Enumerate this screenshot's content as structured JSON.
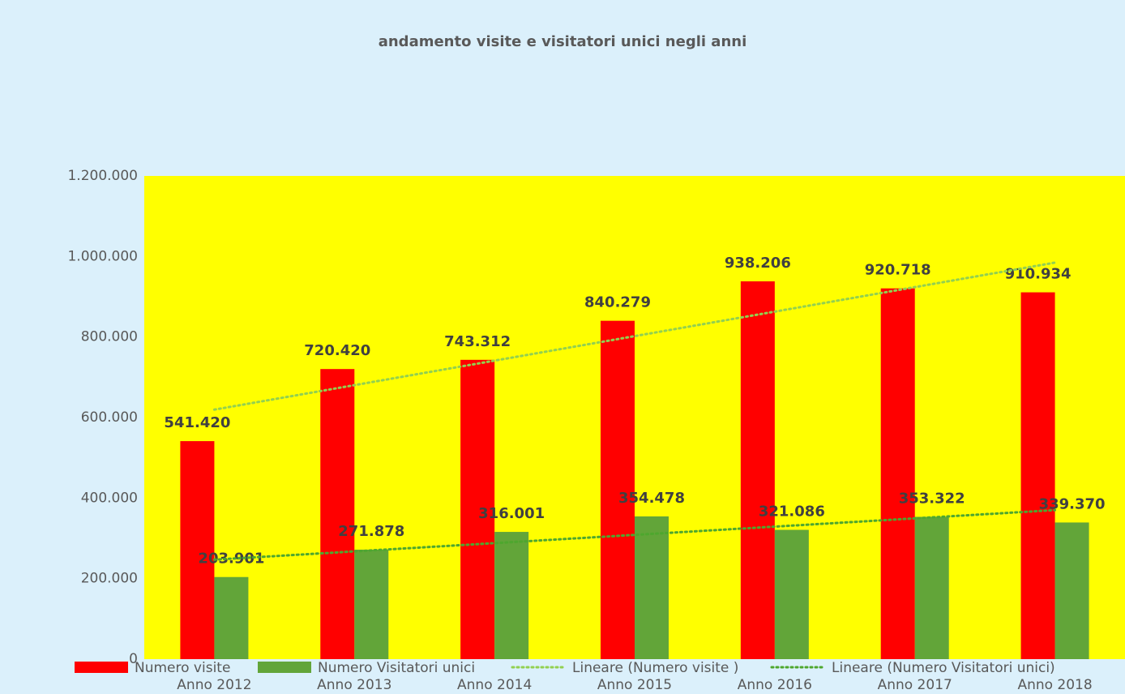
{
  "chart_data": {
    "type": "bar",
    "title": "andamento visite e visitatori unici negli anni",
    "categories": [
      "Anno 2012",
      "Anno 2013",
      "Anno 2014",
      "Anno 2015",
      "Anno 2016",
      "Anno 2017",
      "Anno 2018"
    ],
    "series": [
      {
        "name": "Numero visite",
        "color": "#ff0000",
        "values": [
          541420,
          720420,
          743312,
          840279,
          938206,
          920718,
          910934
        ],
        "value_labels": [
          "541.420",
          "720.420",
          "743.312",
          "840.279",
          "938.206",
          "920.718",
          "910.934"
        ],
        "trendline": {
          "name": "Lineare (Numero visite )",
          "color": "#92d050",
          "type": "linear"
        }
      },
      {
        "name": "Numero Visitatori unici",
        "color": "#62a539",
        "values": [
          203901,
          271878,
          316001,
          354478,
          321086,
          353322,
          339370
        ],
        "value_labels": [
          "203.901",
          "271.878",
          "316.001",
          "354.478",
          "321.086",
          "353.322",
          "339.370"
        ],
        "trendline": {
          "name": "Lineare (Numero Visitatori unici)",
          "color": "#4ea72e",
          "type": "linear"
        }
      }
    ],
    "ylim": [
      0,
      1200000
    ],
    "yticks": [
      0,
      {
        "value": 200000,
        "label": "200.000"
      },
      {
        "value": 400000,
        "label": "400.000"
      },
      {
        "value": 600000,
        "label": "600.000"
      },
      {
        "value": 800000,
        "label": "800.000"
      },
      {
        "value": 1000000,
        "label": "1.000.000"
      },
      {
        "value": 1200000,
        "label": "1.200.000"
      }
    ],
    "grid": false,
    "legend": "bottom",
    "background": "#dbf0fb",
    "plot_background": "#ffff00"
  }
}
